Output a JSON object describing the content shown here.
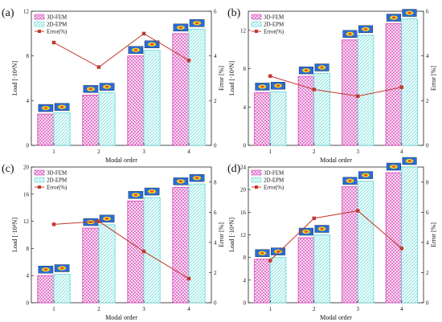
{
  "colors": {
    "fem": "#d63fb6",
    "epm": "#5fd6d3",
    "error": "#c0392b",
    "axis": "#222222"
  },
  "chart_data": [
    {
      "type": "bar",
      "panel": "(a)",
      "categories": [
        "1",
        "2",
        "3",
        "4"
      ],
      "xlabel": "Modal order",
      "ylabel": "Load [·10⁴N]",
      "ylabel2": "Error [%]",
      "ylim": [
        0,
        12
      ],
      "yticks": [
        "0",
        "4",
        "8",
        "12"
      ],
      "y2lim": [
        0,
        6
      ],
      "y2ticks": [
        "0",
        "2",
        "4",
        "6"
      ],
      "legend_position": "top-left",
      "series": [
        {
          "name": "3D-FEM",
          "values": [
            2.8,
            4.5,
            8.0,
            10.0
          ]
        },
        {
          "name": "2D-EPM",
          "values": [
            2.9,
            4.7,
            8.5,
            10.4
          ]
        },
        {
          "name": "Error(%)",
          "values": [
            4.6,
            3.5,
            5.0,
            3.8
          ],
          "axis": "right"
        }
      ]
    },
    {
      "type": "bar",
      "panel": "(b)",
      "categories": [
        "1",
        "2",
        "3",
        "4"
      ],
      "xlabel": "Modal order",
      "ylabel": "Load [·10⁴N]",
      "ylabel2": "Error [%]",
      "ylim": [
        0,
        14
      ],
      "yticks": [
        "0",
        "4",
        "8",
        "12"
      ],
      "y2lim": [
        0,
        6
      ],
      "y2ticks": [
        "0",
        "2",
        "4",
        "6"
      ],
      "legend_position": "top-left",
      "series": [
        {
          "name": "3D-FEM",
          "values": [
            5.5,
            7.2,
            11.0,
            12.7
          ]
        },
        {
          "name": "2D-EPM",
          "values": [
            5.6,
            7.5,
            11.5,
            13.2
          ]
        },
        {
          "name": "Error(%)",
          "values": [
            3.1,
            2.5,
            2.2,
            2.6
          ],
          "axis": "right"
        }
      ]
    },
    {
      "type": "bar",
      "panel": "(c)",
      "categories": [
        "1",
        "2",
        "3",
        "4"
      ],
      "xlabel": "Modal order",
      "ylabel": "Load [·10⁴N]",
      "ylabel2": "Error [%]",
      "ylim": [
        0,
        20
      ],
      "yticks": [
        "0",
        "4",
        "8",
        "12",
        "16",
        "20"
      ],
      "y2lim": [
        0,
        9
      ],
      "y2ticks": [
        "0",
        "2",
        "4",
        "6",
        "8"
      ],
      "legend_position": "top-left",
      "series": [
        {
          "name": "3D-FEM",
          "values": [
            4.0,
            11.0,
            15.0,
            17.0
          ]
        },
        {
          "name": "2D-EPM",
          "values": [
            4.2,
            11.5,
            15.5,
            17.5
          ]
        },
        {
          "name": "Error(%)",
          "values": [
            5.2,
            5.4,
            3.4,
            1.6
          ],
          "axis": "right"
        }
      ]
    },
    {
      "type": "bar",
      "panel": "(d)",
      "categories": [
        "1",
        "2",
        "3",
        "4"
      ],
      "xlabel": "Modal order",
      "ylabel": "Load [·10⁴N]",
      "ylabel2": "Error [%]",
      "ylim": [
        0,
        24
      ],
      "yticks": [
        "0",
        "4",
        "8",
        "12",
        "16",
        "20",
        "24"
      ],
      "y2lim": [
        0,
        9
      ],
      "y2ticks": [
        "0",
        "2",
        "4",
        "6",
        "8"
      ],
      "legend_position": "top-left",
      "series": [
        {
          "name": "3D-FEM",
          "values": [
            7.7,
            11.5,
            20.5,
            23.0
          ]
        },
        {
          "name": "2D-EPM",
          "values": [
            8.0,
            12.0,
            21.5,
            24.0
          ]
        },
        {
          "name": "Error(%)",
          "values": [
            2.8,
            5.6,
            6.1,
            3.6
          ],
          "axis": "right"
        }
      ]
    }
  ]
}
